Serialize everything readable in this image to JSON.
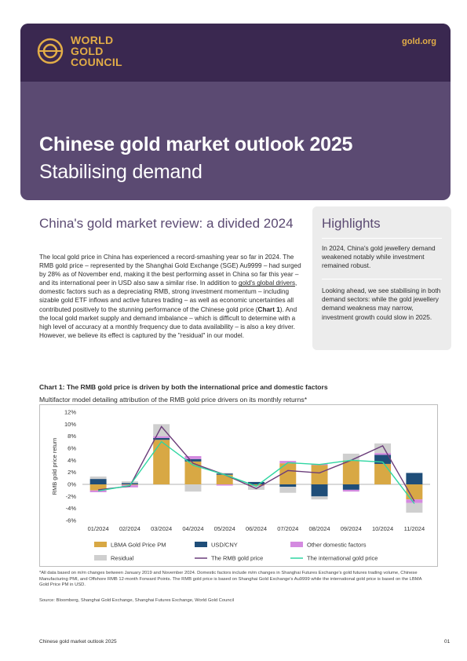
{
  "header": {
    "logo_line1": "WORLD",
    "logo_line2": "GOLD",
    "logo_line3": "COUNCIL",
    "site": "gold.org",
    "title": "Chinese gold market outlook 2025",
    "subtitle": "Stabilising demand"
  },
  "review": {
    "title": "China's gold market review: a divided 2024",
    "p1": "The local gold price in China has experienced a record-smashing year so far in 2024. The RMB gold price – represented by the Shanghai Gold Exchange (SGE) Au9999 – had surged by 28% as of November end, making it the best performing asset in China so far this year – and its international peer in USD also saw a similar rise. In addition to ",
    "link": "gold's global drivers",
    "p2": ", domestic factors such as a depreciating RMB, strong investment momentum – including sizable gold ETF inflows and active futures trading – as well as economic uncertainties all contributed positively to the stunning performance of the Chinese gold price (",
    "chart_ref": "Chart 1",
    "p3": "). And the local gold market supply and demand imbalance – which is difficult to determine with a high level of accuracy at a monthly frequency due to data availability – is also a key driver. However, we believe its effect is captured by the \"residual\" in our model."
  },
  "highlights": {
    "title": "Highlights",
    "p1": "In 2024, China's gold jewellery demand weakened notably while investment remained robust.",
    "p2": "Looking ahead, we see stabilising in both demand sectors: while the gold jewellery demand weakness may narrow, investment growth could slow in 2025."
  },
  "chart_section": {
    "title": "Chart 1: The RMB gold price is driven by both the international price and domestic factors",
    "subtitle": "Multifactor model detailing attribution of the RMB gold price drivers on its monthly returns*"
  },
  "chart_data": {
    "type": "bar",
    "stacked": true,
    "categories": [
      "01/2024",
      "02/2024",
      "03/2024",
      "04/2024",
      "05/2024",
      "06/2024",
      "07/2024",
      "08/2024",
      "09/2024",
      "10/2024",
      "11/2024"
    ],
    "ylabel": "RMB gold price return",
    "ylim": [
      -6,
      12
    ],
    "yticks": [
      "-6%",
      "-4%",
      "-2%",
      "0%",
      "2%",
      "4%",
      "6%",
      "8%",
      "10%",
      "12%"
    ],
    "legend_position": "bottom",
    "series": [
      {
        "name": "LBMA Gold Price PM",
        "kind": "bar",
        "color": "#d8a844",
        "values": [
          -1.0,
          -0.1,
          7.4,
          3.8,
          1.6,
          -0.2,
          3.5,
          3.2,
          4.0,
          3.4,
          -2.5
        ]
      },
      {
        "name": "USD/CNY",
        "kind": "bar",
        "color": "#1f4e79",
        "values": [
          0.9,
          0.2,
          0.3,
          0.4,
          0.2,
          0.4,
          -0.4,
          -2.0,
          -0.9,
          1.5,
          1.9
        ]
      },
      {
        "name": "Other domestic factors",
        "kind": "bar",
        "color": "#d48ae0",
        "values": [
          -0.3,
          -0.4,
          0.3,
          0.5,
          -0.2,
          -0.1,
          0.4,
          0.2,
          -0.3,
          0.3,
          -0.6
        ]
      },
      {
        "name": "Residual",
        "kind": "bar",
        "color": "#cfcfcf",
        "values": [
          0.4,
          0.3,
          2.0,
          -1.2,
          0.1,
          -0.6,
          -1.0,
          -0.5,
          1.1,
          1.6,
          -1.6
        ]
      },
      {
        "name": "The RMB gold price",
        "kind": "line",
        "color": "#6b3d7a",
        "values": [
          -0.9,
          -0.3,
          9.6,
          3.5,
          1.6,
          -0.7,
          2.3,
          1.9,
          4.0,
          6.4,
          -2.8
        ]
      },
      {
        "name": "The international gold price",
        "kind": "line",
        "color": "#2fd6a2",
        "values": [
          -1.1,
          -0.2,
          7.1,
          3.2,
          1.6,
          -0.3,
          3.6,
          3.3,
          4.0,
          3.7,
          -3.2
        ]
      }
    ]
  },
  "footnote": "*All data based on m/m changes between January 2019 and November 2024. Domestic factors include m/m changes in Shanghai Futures Exchange's gold futures trading volume, Chinese Manufacturing PMI, and Offshore RMB 12-month Forward Points.  The RMB gold price is based on Shanghai Gold Exchange's Au9999 while the international gold price is based on the LBMA Gold Price PM in USD.",
  "source": "Source: Bloomberg, Shanghai Gold Exchange, Shanghai Futures Exchange, World Gold Council",
  "footer": {
    "left": "Chinese gold market outlook 2025",
    "page": "01"
  },
  "colors": {
    "brand_purple": "#5b4a72",
    "brand_dark": "#3a2850",
    "gold": "#e2ad47"
  }
}
